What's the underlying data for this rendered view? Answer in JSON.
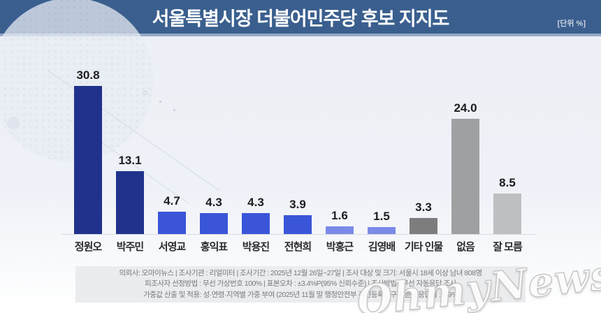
{
  "header": {
    "title": "서울특별시장 더불어민주당 후보 지지도",
    "unit_label": "[단위 %]"
  },
  "chart_data": {
    "type": "bar",
    "title": "서울특별시장 더불어민주당 후보 지지도",
    "unit": "%",
    "categories": [
      "정원오",
      "박주민",
      "서영교",
      "홍익표",
      "박용진",
      "전현희",
      "박홍근",
      "김영배",
      "기타 인물",
      "없음",
      "잘 모름"
    ],
    "values": [
      30.8,
      13.1,
      4.7,
      4.3,
      4.3,
      3.9,
      1.6,
      1.5,
      3.3,
      24.0,
      8.5
    ],
    "value_labels": [
      "30.8",
      "13.1",
      "4.7",
      "4.3",
      "4.3",
      "3.9",
      "1.6",
      "1.5",
      "3.3",
      "24.0",
      "8.5"
    ],
    "bar_colors": [
      "#20328c",
      "#20328c",
      "#3a55d8",
      "#3a55d8",
      "#3a55d8",
      "#3a55d8",
      "#7b8ae8",
      "#7b8ae8",
      "#7d7d7d",
      "#9fa0a2",
      "#bebfc1"
    ],
    "ylim": [
      0,
      32
    ],
    "grid": false,
    "legend": "none",
    "xlabel": "",
    "ylabel": ""
  },
  "footer": {
    "lines": [
      "의뢰사: 오마이뉴스 | 조사기관 : 리얼미터 | 조사기간 : 2025년 12월 26일~27일 | 조사 대상 및 크기: 서울시 18세 이상 남녀 808명",
      "피조사자 선정방법 : 무선 가상번호 100% | 표본오차 : ±3.4%P(95% 신뢰수준) | 조사방법 : 무선 자동응답 조사",
      "가중값 산출 및 적용: 성·연령·지역별 가중 부여 (2025년 11월 말 행정안전부 주민등록인구 기준) | 응답률 : 5.9%"
    ]
  },
  "watermark": "OhmyNews",
  "colors": {
    "header_bg": "#3a5f8e",
    "navy_bar": "#20328c",
    "blue_bar": "#3a55d8",
    "periwinkle_bar": "#7b8ae8",
    "dark_gray_bar": "#7d7d7d",
    "mid_gray_bar": "#9fa0a2",
    "light_gray_bar": "#bebfc1"
  }
}
